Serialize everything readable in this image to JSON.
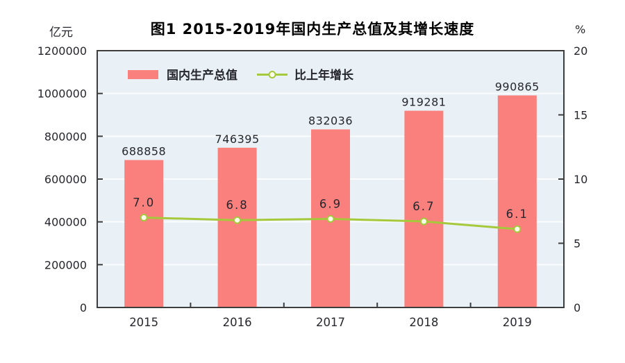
{
  "chart_data": {
    "type": "combo",
    "title": "图1  2015-2019年国内生产总值及其增长速度",
    "categories": [
      "2015",
      "2016",
      "2017",
      "2018",
      "2019"
    ],
    "series": [
      {
        "name": "国内生产总值",
        "type": "bar",
        "axis": "left",
        "unit": "亿元",
        "values": [
          688858,
          746395,
          832036,
          919281,
          990865
        ],
        "labels": [
          "688858",
          "746395",
          "832036",
          "919281",
          "990865"
        ]
      },
      {
        "name": "比上年增长",
        "type": "line",
        "axis": "right",
        "unit": "%",
        "values": [
          7.0,
          6.8,
          6.9,
          6.7,
          6.1
        ],
        "labels": [
          "7.0",
          "6.8",
          "6.9",
          "6.7",
          "6.1"
        ]
      }
    ],
    "left_axis": {
      "unit": "亿元",
      "min": 0,
      "max": 1200000,
      "tick_step": 200000,
      "ticks": [
        0,
        200000,
        400000,
        600000,
        800000,
        1000000,
        1200000
      ]
    },
    "right_axis": {
      "unit": "%",
      "min": 0,
      "max": 20,
      "tick_step": 5,
      "ticks": [
        0,
        5,
        10,
        15,
        20
      ]
    },
    "legend": {
      "position": "top-left-inside",
      "entries": [
        "国内生产总值",
        "比上年增长"
      ]
    },
    "grid": "horizontal-white",
    "colors": {
      "bar": "#F9807D",
      "line": "#A6C93C",
      "marker_fill": "#FDFDEC",
      "plot_bg": "#E9F1F6",
      "grid": "#FAFCFD",
      "border": "#3D3D3D",
      "text": "#26262e",
      "title": "#000000"
    }
  }
}
